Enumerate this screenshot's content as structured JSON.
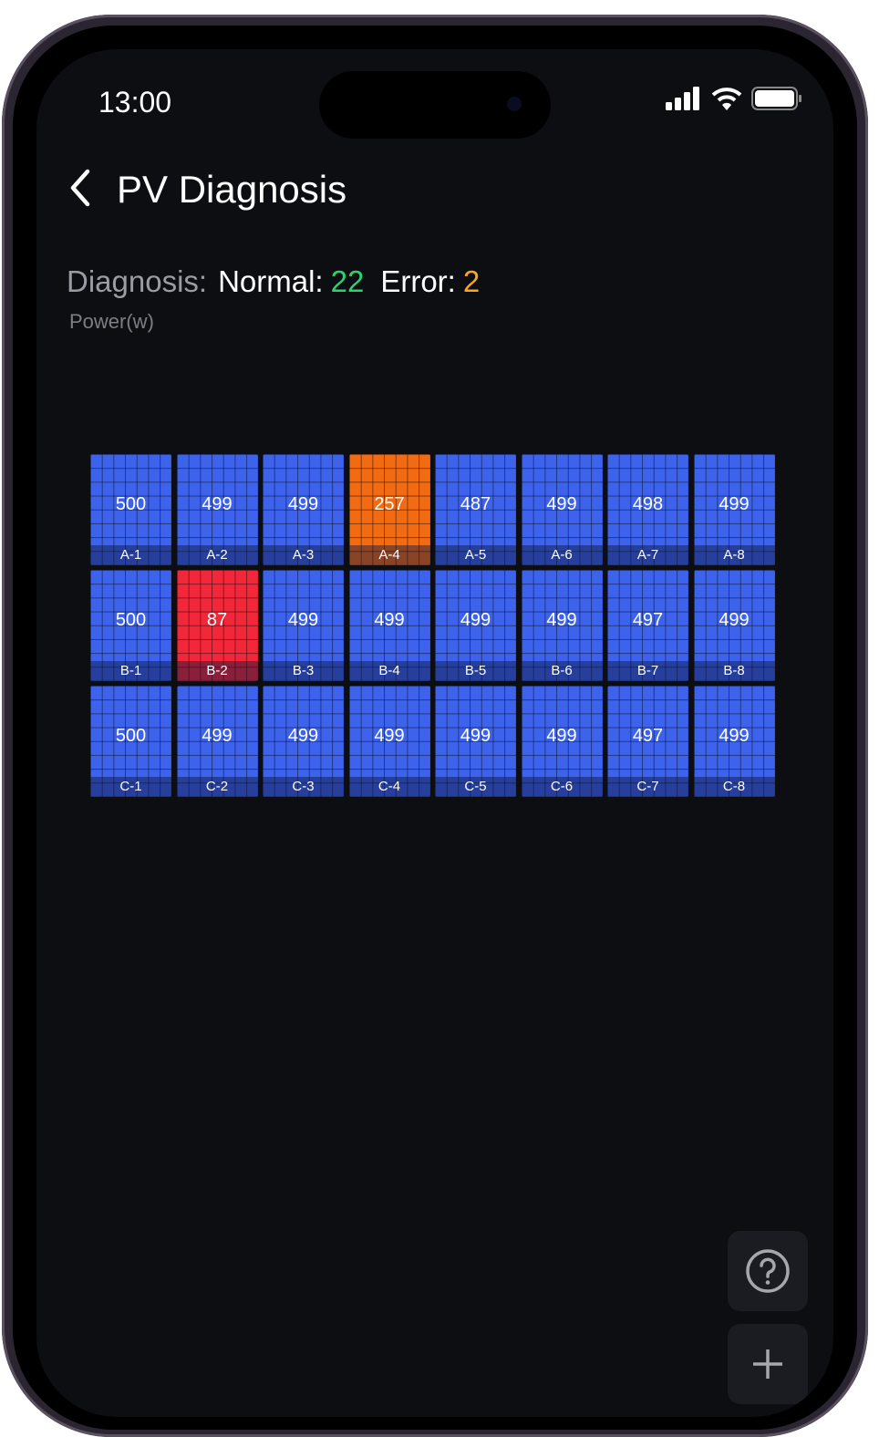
{
  "status_bar": {
    "time": "13:00",
    "icons": [
      "signal-icon",
      "wifi-icon",
      "battery-icon"
    ]
  },
  "header": {
    "title": "PV Diagnosis",
    "back_icon": "chevron-left-icon"
  },
  "summary": {
    "label": "Diagnosis:",
    "normal_label": "Normal:",
    "normal_count": "22",
    "error_label": "Error:",
    "error_count": "2",
    "unit": "Power(w)"
  },
  "colors": {
    "normal": "#3d63ec",
    "warning": "#f26a12",
    "error": "#f2283a",
    "normal_text": "#2bd36f",
    "error_text": "#f5a623"
  },
  "panels": [
    {
      "id": "A-1",
      "power": "500",
      "status": "normal"
    },
    {
      "id": "A-2",
      "power": "499",
      "status": "normal"
    },
    {
      "id": "A-3",
      "power": "499",
      "status": "normal"
    },
    {
      "id": "A-4",
      "power": "257",
      "status": "warning"
    },
    {
      "id": "A-5",
      "power": "487",
      "status": "normal"
    },
    {
      "id": "A-6",
      "power": "499",
      "status": "normal"
    },
    {
      "id": "A-7",
      "power": "498",
      "status": "normal"
    },
    {
      "id": "A-8",
      "power": "499",
      "status": "normal"
    },
    {
      "id": "B-1",
      "power": "500",
      "status": "normal"
    },
    {
      "id": "B-2",
      "power": "87",
      "status": "error"
    },
    {
      "id": "B-3",
      "power": "499",
      "status": "normal"
    },
    {
      "id": "B-4",
      "power": "499",
      "status": "normal"
    },
    {
      "id": "B-5",
      "power": "499",
      "status": "normal"
    },
    {
      "id": "B-6",
      "power": "499",
      "status": "normal"
    },
    {
      "id": "B-7",
      "power": "497",
      "status": "normal"
    },
    {
      "id": "B-8",
      "power": "499",
      "status": "normal"
    },
    {
      "id": "C-1",
      "power": "500",
      "status": "normal"
    },
    {
      "id": "C-2",
      "power": "499",
      "status": "normal"
    },
    {
      "id": "C-3",
      "power": "499",
      "status": "normal"
    },
    {
      "id": "C-4",
      "power": "499",
      "status": "normal"
    },
    {
      "id": "C-5",
      "power": "499",
      "status": "normal"
    },
    {
      "id": "C-6",
      "power": "499",
      "status": "normal"
    },
    {
      "id": "C-7",
      "power": "497",
      "status": "normal"
    },
    {
      "id": "C-8",
      "power": "499",
      "status": "normal"
    }
  ],
  "fab": {
    "help_icon": "help-circle-icon",
    "add_icon": "plus-icon"
  }
}
